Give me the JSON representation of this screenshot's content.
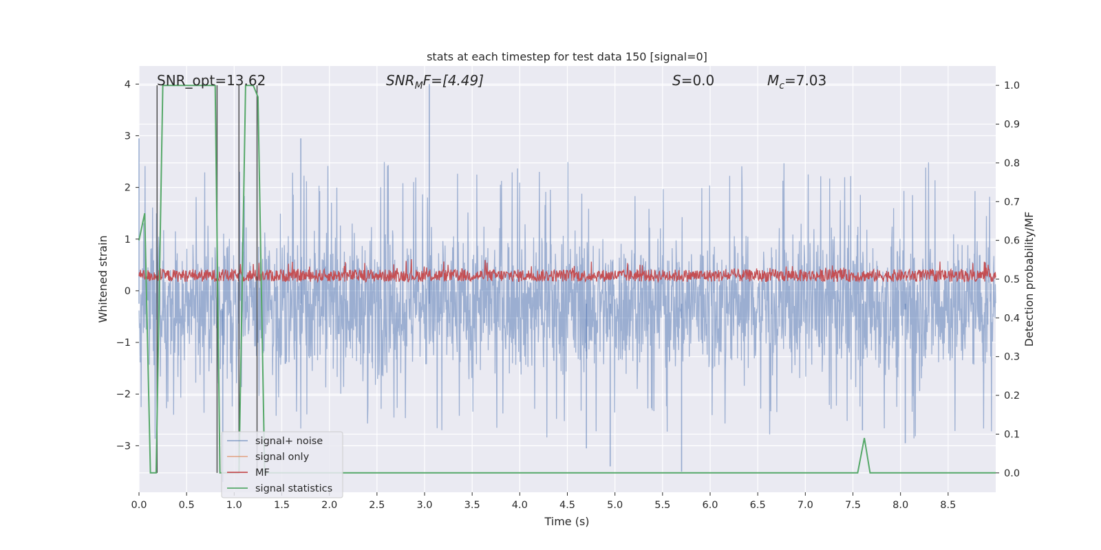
{
  "chart_data": {
    "type": "line",
    "title": "stats at each timestep for test data 150 [signal=0]",
    "xlabel": "Time (s)",
    "ylabel_left": "Whitened strain",
    "ylabel_right": "Detection probability/MF",
    "xlim": [
      0,
      9.0
    ],
    "ylim_left": [
      -3.9,
      4.35
    ],
    "ylim_right": [
      -0.05,
      1.05
    ],
    "grid": true,
    "legend_position": "lower-left",
    "x_ticks": [
      "0.0",
      "0.5",
      "1.0",
      "1.5",
      "2.0",
      "2.5",
      "3.0",
      "3.5",
      "4.0",
      "4.5",
      "5.0",
      "5.5",
      "6.0",
      "6.5",
      "7.0",
      "7.5",
      "8.0",
      "8.5"
    ],
    "y_left_ticks": [
      "4",
      "3",
      "2",
      "1",
      "0",
      "−1",
      "−2",
      "−3"
    ],
    "y_right_ticks": [
      "1.0",
      "0.9",
      "0.8",
      "0.7",
      "0.6",
      "0.5",
      "0.4",
      "0.3",
      "0.2",
      "0.1",
      "0.0"
    ],
    "annotations": {
      "snr_opt": "SNR_opt=13.62",
      "snr_mf_main": "SNR",
      "snr_mf_sub": "M",
      "snr_mf_rest": "F=[4.49]",
      "s_italic": "S",
      "s_rest": "=0.0",
      "mc_main": "M",
      "mc_sub": "c",
      "mc_rest": "=7.03"
    },
    "series": [
      {
        "name": "signal+ noise",
        "color": "#4c72b0",
        "description_values": "noise band approx mean -0.25, spread about ±1.3 with spikes to ±2.8",
        "spikes": [
          [
            0.0,
            2.95
          ],
          [
            3.05,
            4.0
          ],
          [
            1.7,
            2.95
          ],
          [
            0.88,
            -3.7
          ],
          [
            5.7,
            -3.5
          ],
          [
            4.95,
            -3.4
          ],
          [
            4.7,
            -3.05
          ],
          [
            7.6,
            -2.7
          ],
          [
            8.05,
            -2.95
          ]
        ]
      },
      {
        "name": "signal only",
        "color": "#dd8452",
        "points": []
      },
      {
        "name": "MF",
        "color": "#c44e52",
        "axis": "right",
        "description_values": "fluctuates between about 0.49 and 0.55, peaks near 0.56"
      },
      {
        "name": "signal statistics",
        "color": "#55a868",
        "axis": "right",
        "points": [
          [
            0.0,
            0.6
          ],
          [
            0.06,
            0.67
          ],
          [
            0.12,
            0.0
          ],
          [
            0.18,
            0.0
          ],
          [
            0.25,
            1.0
          ],
          [
            0.8,
            1.0
          ],
          [
            0.85,
            0.0
          ],
          [
            1.05,
            0.0
          ],
          [
            1.12,
            1.0
          ],
          [
            1.2,
            1.0
          ],
          [
            1.25,
            0.97
          ],
          [
            1.32,
            0.0
          ],
          [
            7.55,
            0.0
          ],
          [
            7.62,
            0.09
          ],
          [
            7.68,
            0.0
          ],
          [
            9.0,
            0.0
          ]
        ]
      }
    ],
    "vertical_lines_x": [
      0.19,
      0.82,
      1.05,
      1.24
    ]
  }
}
